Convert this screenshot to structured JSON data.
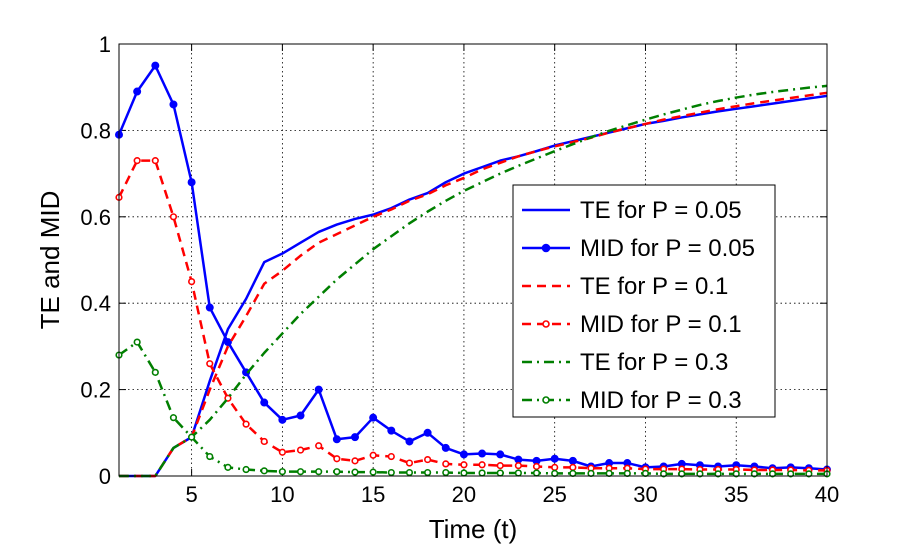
{
  "chart_data": {
    "type": "line",
    "title": "",
    "xlabel": "Time (t)",
    "ylabel": "TE and MID",
    "xlim": [
      1,
      40
    ],
    "ylim": [
      0,
      1
    ],
    "xticks": [
      "5",
      "10",
      "15",
      "20",
      "25",
      "30",
      "35",
      "40"
    ],
    "yticks": [
      "0",
      "0.2",
      "0.4",
      "0.6",
      "0.8",
      "1"
    ],
    "grid": true,
    "legend_position": "center-right",
    "x": [
      1,
      2,
      3,
      4,
      5,
      6,
      7,
      8,
      9,
      10,
      11,
      12,
      13,
      14,
      15,
      16,
      17,
      18,
      19,
      20,
      21,
      22,
      23,
      24,
      25,
      26,
      27,
      28,
      29,
      30,
      31,
      32,
      33,
      34,
      35,
      36,
      37,
      38,
      39,
      40
    ],
    "series": [
      {
        "name": "TE for P = 0.05",
        "color": "#0000ff",
        "style": "solid",
        "marker": "none",
        "values": [
          0,
          0,
          0,
          0.065,
          0.09,
          0.22,
          0.34,
          0.41,
          0.495,
          0.515,
          0.54,
          0.565,
          0.582,
          0.595,
          0.605,
          0.62,
          0.64,
          0.655,
          0.68,
          0.7,
          0.715,
          0.73,
          0.74,
          0.752,
          0.765,
          0.775,
          0.785,
          0.795,
          0.805,
          0.815,
          0.822,
          0.83,
          0.837,
          0.844,
          0.85,
          0.856,
          0.862,
          0.868,
          0.874,
          0.88
        ]
      },
      {
        "name": "MID for P = 0.05",
        "color": "#0000ff",
        "style": "solid",
        "marker": "filled-dot",
        "values": [
          0.79,
          0.89,
          0.95,
          0.86,
          0.68,
          0.39,
          0.31,
          0.24,
          0.17,
          0.13,
          0.14,
          0.2,
          0.085,
          0.09,
          0.135,
          0.105,
          0.08,
          0.1,
          0.065,
          0.05,
          0.052,
          0.05,
          0.038,
          0.035,
          0.04,
          0.035,
          0.022,
          0.03,
          0.03,
          0.02,
          0.022,
          0.028,
          0.025,
          0.022,
          0.025,
          0.022,
          0.018,
          0.02,
          0.018,
          0.015
        ]
      },
      {
        "name": "TE for P = 0.1",
        "color": "#ff0000",
        "style": "dashed",
        "marker": "none",
        "values": [
          0,
          0,
          0,
          0.065,
          0.09,
          0.2,
          0.3,
          0.37,
          0.445,
          0.475,
          0.51,
          0.54,
          0.56,
          0.58,
          0.6,
          0.617,
          0.637,
          0.652,
          0.673,
          0.69,
          0.71,
          0.725,
          0.74,
          0.752,
          0.763,
          0.773,
          0.783,
          0.795,
          0.805,
          0.815,
          0.825,
          0.833,
          0.841,
          0.849,
          0.856,
          0.863,
          0.869,
          0.875,
          0.881,
          0.887
        ]
      },
      {
        "name": "MID for P = 0.1",
        "color": "#ff0000",
        "style": "dashed",
        "marker": "open-circle",
        "values": [
          0.645,
          0.73,
          0.73,
          0.6,
          0.45,
          0.26,
          0.18,
          0.12,
          0.08,
          0.055,
          0.06,
          0.07,
          0.04,
          0.035,
          0.048,
          0.045,
          0.03,
          0.038,
          0.028,
          0.026,
          0.026,
          0.024,
          0.024,
          0.022,
          0.02,
          0.02,
          0.018,
          0.018,
          0.018,
          0.016,
          0.016,
          0.016,
          0.015,
          0.015,
          0.015,
          0.014,
          0.014,
          0.014,
          0.013,
          0.013
        ]
      },
      {
        "name": "TE for P = 0.3",
        "color": "#007f00",
        "style": "dash-dot",
        "marker": "none",
        "values": [
          0,
          0,
          0,
          0.065,
          0.09,
          0.13,
          0.18,
          0.235,
          0.285,
          0.33,
          0.375,
          0.415,
          0.455,
          0.49,
          0.525,
          0.555,
          0.585,
          0.612,
          0.637,
          0.66,
          0.68,
          0.7,
          0.718,
          0.735,
          0.752,
          0.768,
          0.784,
          0.799,
          0.812,
          0.825,
          0.837,
          0.848,
          0.859,
          0.868,
          0.876,
          0.883,
          0.889,
          0.894,
          0.899,
          0.903
        ]
      },
      {
        "name": "MID for P = 0.3",
        "color": "#007f00",
        "style": "dash-dot",
        "marker": "open-circle",
        "values": [
          0.28,
          0.31,
          0.24,
          0.135,
          0.09,
          0.045,
          0.02,
          0.015,
          0.012,
          0.01,
          0.01,
          0.01,
          0.01,
          0.009,
          0.009,
          0.008,
          0.008,
          0.008,
          0.008,
          0.007,
          0.007,
          0.007,
          0.007,
          0.007,
          0.006,
          0.006,
          0.006,
          0.006,
          0.006,
          0.006,
          0.005,
          0.005,
          0.005,
          0.005,
          0.005,
          0.005,
          0.005,
          0.005,
          0.005,
          0.005
        ]
      }
    ]
  }
}
